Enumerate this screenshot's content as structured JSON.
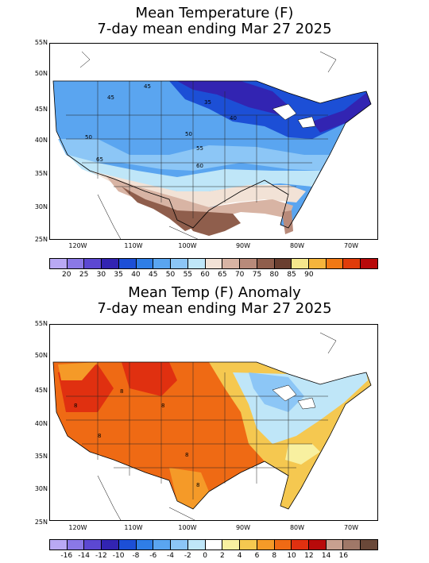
{
  "top": {
    "title_line1": "Mean Temperature (F)",
    "title_line2": "7-day mean ending Mar 27 2025",
    "lat_labels": [
      "55N",
      "50N",
      "45N",
      "40N",
      "35N",
      "30N",
      "25N"
    ],
    "lon_labels": [
      "120W",
      "110W",
      "100W",
      "90W",
      "80W",
      "70W"
    ],
    "contour_labels": [
      "45",
      "45",
      "35",
      "40",
      "50",
      "50",
      "55",
      "60",
      "65"
    ],
    "colorbar_labels": [
      "20",
      "25",
      "30",
      "35",
      "40",
      "45",
      "50",
      "55",
      "60",
      "65",
      "70",
      "75",
      "80",
      "85",
      "90"
    ],
    "colorbar_colors": [
      "#b9a9f4",
      "#8a78e6",
      "#5c48d2",
      "#3224b2",
      "#1c4fd6",
      "#2f7ee6",
      "#5aa5f0",
      "#8cc6f6",
      "#bfe6f8",
      "#f2e2d6",
      "#d8b4a4",
      "#b88a7a",
      "#8f5e4c",
      "#6a3f30",
      "#f5e68c",
      "#f5b43c",
      "#f07814",
      "#e03c0a",
      "#b80a0a"
    ]
  },
  "bottom": {
    "title_line1": "Mean Temp (F) Anomaly",
    "title_line2": "7-day mean ending Mar 27 2025",
    "lat_labels": [
      "55N",
      "50N",
      "45N",
      "40N",
      "35N",
      "30N",
      "25N"
    ],
    "lon_labels": [
      "120W",
      "110W",
      "100W",
      "90W",
      "80W",
      "70W"
    ],
    "contour_labels": [
      "8",
      "8",
      "8",
      "8",
      "8",
      "8"
    ],
    "colorbar_labels": [
      "-16",
      "-14",
      "-12",
      "-10",
      "-8",
      "-6",
      "-4",
      "-2",
      "0",
      "2",
      "4",
      "6",
      "8",
      "10",
      "12",
      "14",
      "16"
    ],
    "colorbar_colors": [
      "#b9a9f4",
      "#8a78e6",
      "#5c48d2",
      "#3224b2",
      "#1c4fd6",
      "#2f7ee6",
      "#5aa5f0",
      "#8cc6f6",
      "#bfe6f8",
      "#ffffff",
      "#f8f0a0",
      "#f5c850",
      "#f59a28",
      "#ef6a14",
      "#e03010",
      "#b80a0a",
      "#c8a090",
      "#a07868",
      "#6a4838"
    ]
  }
}
